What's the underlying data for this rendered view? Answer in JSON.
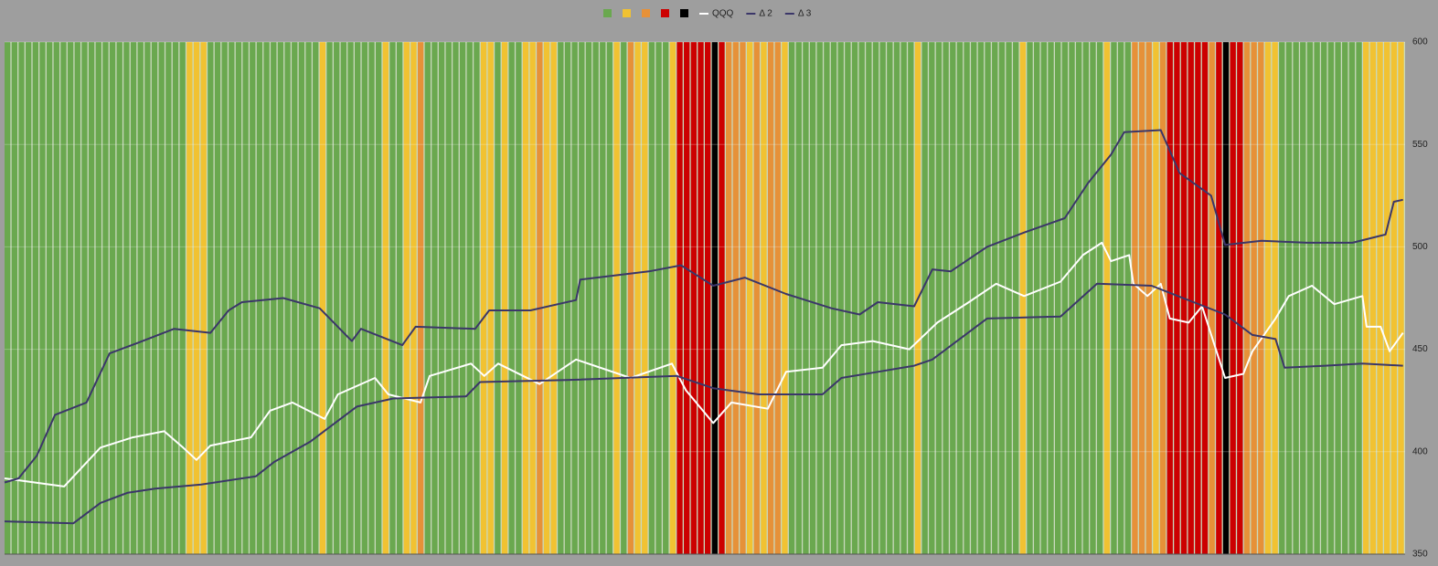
{
  "chart_data": {
    "type": "regime-line",
    "regime_colors": [
      "#6aa84f",
      "#f1c232",
      "#e69138",
      "#cc0000",
      "#000000"
    ],
    "regime": [
      0,
      0,
      0,
      0,
      0,
      0,
      0,
      0,
      0,
      0,
      0,
      0,
      0,
      0,
      0,
      0,
      0,
      0,
      0,
      0,
      0,
      0,
      0,
      0,
      0,
      0,
      1,
      1,
      1,
      0,
      0,
      0,
      0,
      0,
      0,
      0,
      0,
      0,
      0,
      0,
      0,
      0,
      0,
      0,
      0,
      1,
      0,
      0,
      0,
      0,
      0,
      0,
      0,
      0,
      1,
      0,
      0,
      1,
      1,
      2,
      0,
      0,
      0,
      0,
      0,
      0,
      0,
      0,
      1,
      1,
      0,
      1,
      0,
      0,
      1,
      1,
      2,
      1,
      1,
      0,
      0,
      0,
      0,
      0,
      0,
      0,
      0,
      1,
      0,
      2,
      1,
      1,
      0,
      0,
      0,
      1,
      3,
      3,
      3,
      3,
      3,
      4,
      3,
      2,
      2,
      2,
      1,
      2,
      1,
      2,
      2,
      1,
      0,
      0,
      0,
      0,
      0,
      0,
      0,
      0,
      0,
      0,
      0,
      0,
      0,
      0,
      0,
      0,
      0,
      0,
      1,
      0,
      0,
      0,
      0,
      0,
      0,
      0,
      0,
      0,
      0,
      0,
      0,
      0,
      0,
      1,
      0,
      0,
      0,
      0,
      0,
      0,
      0,
      0,
      0,
      0,
      0,
      1,
      0,
      0,
      0,
      2,
      2,
      2,
      1,
      2,
      3,
      3,
      3,
      3,
      3,
      3,
      2,
      3,
      4,
      3,
      3,
      2,
      2,
      2,
      1,
      1,
      0,
      0,
      0,
      0,
      0,
      0,
      0,
      0,
      0,
      0,
      0,
      0,
      1,
      1,
      1,
      1,
      1,
      1
    ],
    "xlim": [
      0,
      200
    ],
    "ylim": [
      350,
      600
    ],
    "yticks": [
      350,
      400,
      450,
      500,
      550,
      600
    ],
    "grid": true,
    "series": [
      {
        "name": "QQQ",
        "color": "#ffffff",
        "x": [
          0,
          8.5,
          13.7,
          18.3,
          22.8,
          25.5,
          27.4,
          29.4,
          35.2,
          37.9,
          41.1,
          45.7,
          47.6,
          52.9,
          54.8,
          59.4,
          60.7,
          66.6,
          68.5,
          70.5,
          76.4,
          81.6,
          89.4,
          95.3,
          97.3,
          101.2,
          103.8,
          109,
          111.6,
          116.8,
          119.5,
          124,
          129.2,
          133.2,
          137.7,
          141.6,
          145.6,
          150.8,
          154,
          156.7,
          158,
          160.6,
          161.2,
          163.2,
          165.1,
          166.4,
          169.1,
          171,
          174.3,
          176.9,
          178.2,
          181.5,
          183.4,
          186.7,
          189.9,
          193.9,
          194.5,
          196.5,
          197.8,
          199.7
        ],
        "values": [
          387,
          383,
          402,
          407,
          410,
          402,
          396,
          403,
          407,
          420,
          424,
          416,
          428,
          436,
          428,
          424,
          437,
          443,
          437,
          443,
          433,
          445,
          436,
          443,
          430,
          414,
          424,
          421,
          439,
          441,
          452,
          454,
          450,
          463,
          473,
          482,
          476,
          483,
          496,
          502,
          493,
          496,
          482,
          476,
          482,
          465,
          463,
          471,
          436,
          438,
          449,
          465,
          476,
          481,
          472,
          476,
          461,
          461,
          449,
          458
        ]
      },
      {
        "name": "Δ 2",
        "color": "#3b3669",
        "x": [
          0,
          2,
          4.6,
          7.2,
          11.7,
          15,
          18.9,
          24.2,
          29.4,
          32,
          33.9,
          39.8,
          45,
          49.6,
          50.9,
          56.8,
          58.7,
          67.2,
          69.2,
          75.1,
          81.6,
          82.2,
          92,
          96.6,
          101.2,
          105.7,
          111.6,
          118.1,
          122.1,
          124.7,
          129.9,
          132.5,
          135.1,
          140.3,
          145.6,
          151.4,
          154.7,
          158,
          159.9,
          165.1,
          167.8,
          172.3,
          174.3,
          179.5,
          186,
          192.5,
          197.2,
          198.4,
          199.7
        ],
        "values": [
          385,
          387,
          398,
          418,
          424,
          448,
          453,
          460,
          458,
          469,
          473,
          475,
          470,
          454,
          460,
          452,
          461,
          460,
          469,
          469,
          474,
          484,
          488,
          491,
          481,
          485,
          477,
          470,
          467,
          473,
          471,
          489,
          488,
          500,
          507,
          514,
          531,
          545,
          556,
          557,
          536,
          525,
          501,
          503,
          502,
          502,
          506,
          522,
          523
        ]
      },
      {
        "name": "Δ 3",
        "color": "#3b3669",
        "x": [
          0,
          9.8,
          13.7,
          17.6,
          21.5,
          28.1,
          35.9,
          38.5,
          43.7,
          50.3,
          55.5,
          65.9,
          67.9,
          80.3,
          96,
          101.2,
          107.7,
          116.8,
          119.5,
          124.7,
          129.9,
          132.5,
          140.3,
          150.8,
          156,
          163.8,
          174.3,
          178.2,
          181.5,
          182.8,
          188.6,
          193.9,
          199.7
        ],
        "values": [
          366,
          365,
          375,
          380,
          382,
          384,
          388,
          395,
          405,
          422,
          426,
          427,
          434,
          435,
          437,
          431,
          428,
          428,
          436,
          439,
          442,
          445,
          465,
          466,
          482,
          481,
          467,
          457,
          455,
          441,
          442,
          443,
          442
        ]
      }
    ]
  }
}
